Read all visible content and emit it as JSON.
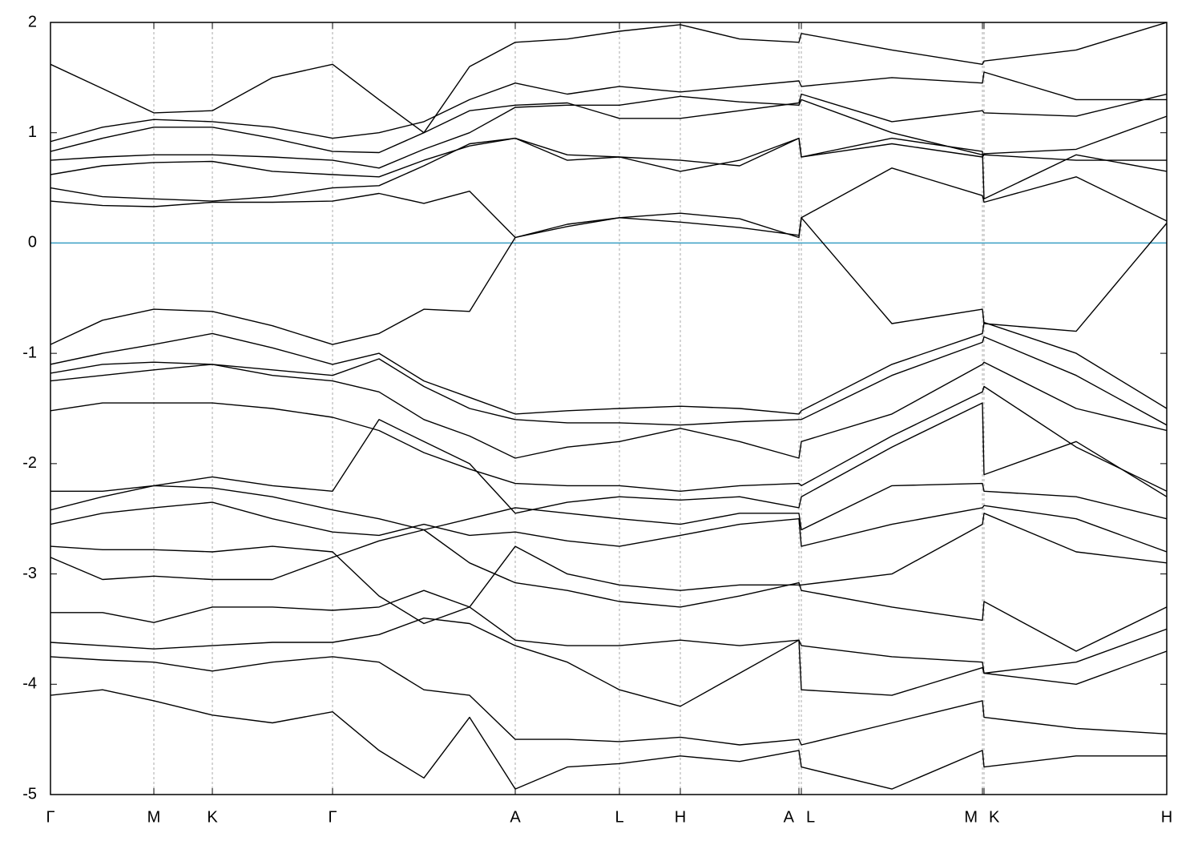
{
  "chart_data": {
    "type": "line",
    "x": [
      0,
      0.65,
      1.29,
      2.02,
      2.77,
      3.52,
      4.1,
      4.66,
      5.23,
      5.8,
      6.45,
      7.1,
      7.86,
      8.6,
      9.34,
      9.37,
      10.5,
      11.63,
      11.65,
      12.8,
      13.93
    ],
    "color": "#000000",
    "series": [
      {
        "values": [
          0.38,
          0.34,
          0.33,
          0.37,
          0.37,
          0.38,
          0.45,
          0.36,
          0.47,
          0.05,
          0.15,
          0.23,
          0.19,
          0.14,
          0.07,
          0.23,
          0.68,
          0.43,
          0.37,
          0.6,
          0.2
        ]
      },
      {
        "values": [
          -0.92,
          -0.7,
          -0.6,
          -0.62,
          -0.75,
          -0.92,
          -0.82,
          -0.6,
          -0.62,
          0.05,
          0.17,
          0.23,
          0.27,
          0.22,
          0.05,
          0.23,
          -0.73,
          -0.6,
          -0.73,
          -0.8,
          0.18
        ]
      },
      {
        "values": [
          0.5,
          0.42,
          0.4,
          0.38,
          0.42,
          0.5,
          0.52,
          0.7,
          0.9,
          0.95,
          0.8,
          0.78,
          0.65,
          0.75,
          0.95,
          0.78,
          0.95,
          0.83,
          0.4,
          0.8,
          0.65
        ]
      },
      {
        "values": [
          0.62,
          0.7,
          0.73,
          0.74,
          0.65,
          0.62,
          0.6,
          0.75,
          0.88,
          0.95,
          0.75,
          0.78,
          0.75,
          0.7,
          0.95,
          0.78,
          0.9,
          0.78,
          0.8,
          0.75,
          0.75
        ]
      },
      {
        "values": [
          0.75,
          0.78,
          0.8,
          0.8,
          0.78,
          0.75,
          0.68,
          0.85,
          1.0,
          1.23,
          1.25,
          1.25,
          1.33,
          1.28,
          1.25,
          1.3,
          1.0,
          0.8,
          0.81,
          0.85,
          1.15
        ]
      },
      {
        "values": [
          0.83,
          0.95,
          1.05,
          1.05,
          0.95,
          0.83,
          0.82,
          1.0,
          1.2,
          1.25,
          1.27,
          1.13,
          1.13,
          1.2,
          1.27,
          1.35,
          1.1,
          1.2,
          1.18,
          1.15,
          1.35
        ]
      },
      {
        "values": [
          0.92,
          1.05,
          1.12,
          1.1,
          1.05,
          0.95,
          1.0,
          1.1,
          1.3,
          1.45,
          1.35,
          1.42,
          1.37,
          1.42,
          1.47,
          1.42,
          1.5,
          1.45,
          1.55,
          1.3,
          1.3
        ]
      },
      {
        "values": [
          1.62,
          1.4,
          1.18,
          1.2,
          1.5,
          1.62,
          1.3,
          1.0,
          1.6,
          1.82,
          1.85,
          1.92,
          1.98,
          1.85,
          1.82,
          1.9,
          1.75,
          1.62,
          1.65,
          1.75,
          2.0
        ]
      },
      {
        "values": [
          -1.1,
          -1.0,
          -0.92,
          -0.82,
          -0.95,
          -1.1,
          -1.0,
          -1.25,
          -1.4,
          -1.55,
          -1.52,
          -1.5,
          -1.48,
          -1.5,
          -1.55,
          -1.52,
          -1.1,
          -0.82,
          -0.72,
          -1.0,
          -1.5
        ]
      },
      {
        "values": [
          -1.18,
          -1.1,
          -1.08,
          -1.1,
          -1.15,
          -1.2,
          -1.05,
          -1.3,
          -1.5,
          -1.6,
          -1.63,
          -1.63,
          -1.65,
          -1.62,
          -1.6,
          -1.6,
          -1.2,
          -0.9,
          -0.85,
          -1.2,
          -1.65
        ]
      },
      {
        "values": [
          -1.25,
          -1.2,
          -1.15,
          -1.1,
          -1.2,
          -1.25,
          -1.35,
          -1.6,
          -1.75,
          -1.95,
          -1.85,
          -1.8,
          -1.68,
          -1.8,
          -1.95,
          -1.8,
          -1.55,
          -1.1,
          -1.08,
          -1.5,
          -1.7
        ]
      },
      {
        "values": [
          -1.52,
          -1.45,
          -1.45,
          -1.45,
          -1.5,
          -1.58,
          -1.7,
          -1.9,
          -2.05,
          -2.18,
          -2.2,
          -2.2,
          -2.25,
          -2.2,
          -2.18,
          -2.2,
          -1.75,
          -1.35,
          -1.3,
          -1.85,
          -2.25
        ]
      },
      {
        "values": [
          -2.25,
          -2.25,
          -2.2,
          -2.12,
          -2.2,
          -2.25,
          -1.6,
          -1.8,
          -2.0,
          -2.45,
          -2.35,
          -2.3,
          -2.33,
          -2.3,
          -2.4,
          -2.3,
          -1.85,
          -1.45,
          -2.1,
          -1.8,
          -2.3
        ]
      },
      {
        "values": [
          -2.42,
          -2.3,
          -2.2,
          -2.22,
          -2.3,
          -2.42,
          -2.5,
          -2.6,
          -2.5,
          -2.4,
          -2.45,
          -2.5,
          -2.55,
          -2.45,
          -2.45,
          -2.6,
          -2.2,
          -2.18,
          -2.25,
          -2.3,
          -2.5
        ]
      },
      {
        "values": [
          -2.55,
          -2.45,
          -2.4,
          -2.35,
          -2.5,
          -2.62,
          -2.65,
          -2.55,
          -2.65,
          -2.62,
          -2.7,
          -2.75,
          -2.65,
          -2.55,
          -2.5,
          -2.75,
          -2.55,
          -2.4,
          -2.38,
          -2.5,
          -2.8
        ]
      },
      {
        "values": [
          -2.75,
          -2.78,
          -2.78,
          -2.8,
          -2.75,
          -2.8,
          -3.2,
          -3.45,
          -3.3,
          -2.75,
          -3.0,
          -3.1,
          -3.15,
          -3.1,
          -3.1,
          -3.1,
          -3.0,
          -2.55,
          -2.45,
          -2.8,
          -2.9
        ]
      },
      {
        "values": [
          -2.85,
          -3.05,
          -3.02,
          -3.05,
          -3.05,
          -2.85,
          -2.7,
          -2.6,
          -2.9,
          -3.08,
          -3.15,
          -3.25,
          -3.3,
          -3.2,
          -3.08,
          -3.15,
          -3.3,
          -3.42,
          -3.25,
          -3.7,
          -3.3
        ]
      },
      {
        "values": [
          -3.35,
          -3.35,
          -3.44,
          -3.3,
          -3.3,
          -3.33,
          -3.3,
          -3.15,
          -3.3,
          -3.6,
          -3.65,
          -3.65,
          -3.6,
          -3.65,
          -3.6,
          -3.65,
          -3.75,
          -3.8,
          -3.9,
          -3.8,
          -3.5
        ]
      },
      {
        "values": [
          -3.62,
          -3.65,
          -3.68,
          -3.65,
          -3.62,
          -3.62,
          -3.55,
          -3.4,
          -3.45,
          -3.65,
          -3.8,
          -4.05,
          -4.2,
          -3.9,
          -3.6,
          -4.05,
          -4.1,
          -3.85,
          -3.9,
          -4.0,
          -3.7
        ]
      },
      {
        "values": [
          -3.75,
          -3.78,
          -3.8,
          -3.88,
          -3.8,
          -3.75,
          -3.8,
          -4.05,
          -4.1,
          -4.5,
          -4.5,
          -4.52,
          -4.48,
          -4.55,
          -4.5,
          -4.55,
          -4.35,
          -4.15,
          -4.3,
          -4.4,
          -4.45
        ]
      },
      {
        "values": [
          -4.1,
          -4.05,
          -4.15,
          -4.28,
          -4.35,
          -4.25,
          -4.6,
          -4.85,
          -4.3,
          -4.95,
          -4.75,
          -4.72,
          -4.65,
          -4.7,
          -4.6,
          -4.75,
          -4.95,
          -4.6,
          -4.75,
          -4.65,
          -4.65
        ]
      }
    ],
    "xlim": [
      0,
      13.93
    ],
    "xticks": [
      {
        "value": 0,
        "label": "Γ"
      },
      {
        "value": 1.29,
        "label": "M"
      },
      {
        "value": 2.02,
        "label": "K"
      },
      {
        "value": 3.52,
        "label": "Γ"
      },
      {
        "value": 5.8,
        "label": "A"
      },
      {
        "value": 7.1,
        "label": "L"
      },
      {
        "value": 7.86,
        "label": "H"
      },
      {
        "value": 9.34,
        "label": "A"
      },
      {
        "value": 9.37,
        "label": "L"
      },
      {
        "value": 11.63,
        "label": "M"
      },
      {
        "value": 11.65,
        "label": "K"
      },
      {
        "value": 13.93,
        "label": "H"
      }
    ],
    "ylim": [
      -5,
      2
    ],
    "yticks": [
      2,
      1,
      0,
      -1,
      -2,
      -3,
      -4,
      -5
    ],
    "grid": true,
    "reference_line": {
      "value": 0,
      "color": "#3a9fc4"
    }
  }
}
